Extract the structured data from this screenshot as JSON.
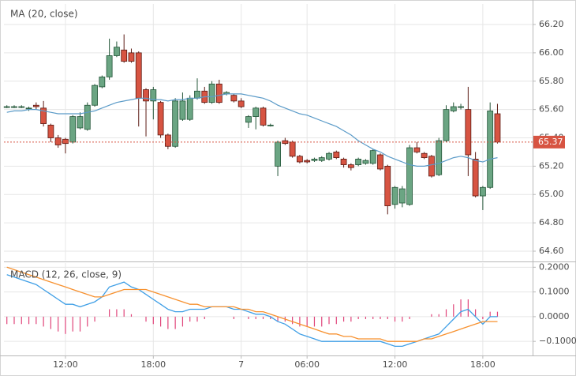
{
  "chart_data": [
    {
      "type": "candlestick",
      "series": [
        {
          "name": "MA (20, close)",
          "color": "#5b9bc8",
          "values": [
            65.58,
            65.59,
            65.59,
            65.6,
            65.6,
            65.59,
            65.58,
            65.57,
            65.57,
            65.57,
            65.57,
            65.58,
            65.59,
            65.61,
            65.63,
            65.65,
            65.66,
            65.67,
            65.68,
            65.68,
            65.67,
            65.67,
            65.66,
            65.67,
            65.67,
            65.68,
            65.68,
            65.69,
            65.69,
            65.7,
            65.71,
            65.71,
            65.71,
            65.7,
            65.69,
            65.68,
            65.66,
            65.63,
            65.61,
            65.59,
            65.57,
            65.56,
            65.54,
            65.52,
            65.5,
            65.48,
            65.45,
            65.42,
            65.38,
            65.35,
            65.32,
            65.3,
            65.27,
            65.25,
            65.23,
            65.21,
            65.2,
            65.2,
            65.21,
            65.22,
            65.24,
            65.26,
            65.27,
            65.26,
            65.24,
            65.23,
            65.25,
            65.26
          ]
        }
      ],
      "open": [
        65.62,
        65.62,
        65.62,
        65.61,
        65.63,
        65.61,
        65.49,
        65.4,
        65.39,
        65.37,
        65.47,
        65.46,
        65.63,
        65.76,
        65.83,
        65.98,
        66.02,
        66.0,
        66.0,
        65.74,
        65.66,
        65.65,
        65.42,
        65.34,
        65.53,
        65.53,
        65.68,
        65.73,
        65.65,
        65.78,
        65.71,
        65.7,
        65.66,
        65.51,
        65.55,
        65.61,
        65.49,
        65.2,
        65.38,
        65.37,
        65.27,
        65.24,
        65.24,
        65.24,
        65.25,
        65.3,
        65.25,
        65.21,
        65.21,
        65.22,
        65.22,
        65.28,
        65.2,
        64.93,
        64.94,
        64.93,
        65.33,
        65.29,
        65.27,
        65.14,
        65.38,
        65.59,
        65.62,
        65.6,
        65.25,
        64.99,
        65.05,
        65.57
      ],
      "high": [
        65.63,
        65.63,
        65.63,
        65.62,
        65.65,
        65.66,
        65.5,
        65.42,
        65.4,
        65.56,
        65.58,
        65.65,
        65.78,
        65.84,
        66.1,
        66.08,
        66.13,
        66.03,
        66.01,
        65.75,
        65.76,
        65.66,
        65.43,
        65.68,
        65.72,
        65.7,
        65.82,
        65.76,
        65.8,
        65.81,
        65.73,
        65.71,
        65.68,
        65.56,
        65.62,
        65.62,
        65.5,
        65.38,
        65.4,
        65.38,
        65.28,
        65.25,
        65.26,
        65.27,
        65.3,
        65.31,
        65.26,
        65.22,
        65.26,
        65.25,
        65.32,
        65.29,
        65.21,
        65.06,
        65.06,
        65.35,
        65.37,
        65.3,
        65.28,
        65.4,
        65.63,
        65.65,
        65.64,
        65.76,
        65.3,
        65.06,
        65.65,
        65.64
      ],
      "low": [
        65.61,
        65.61,
        65.61,
        65.59,
        65.6,
        65.48,
        65.37,
        65.33,
        65.29,
        65.36,
        65.46,
        65.45,
        65.62,
        65.75,
        65.81,
        65.97,
        65.93,
        65.93,
        65.48,
        65.41,
        65.53,
        65.4,
        65.32,
        65.33,
        65.52,
        65.52,
        65.67,
        65.64,
        65.64,
        65.64,
        65.7,
        65.65,
        65.61,
        65.47,
        65.46,
        65.48,
        65.48,
        65.13,
        65.35,
        65.26,
        65.22,
        65.22,
        65.23,
        65.23,
        65.24,
        65.25,
        65.19,
        65.17,
        65.2,
        65.21,
        65.21,
        65.17,
        64.86,
        64.9,
        64.91,
        64.92,
        65.29,
        65.25,
        65.12,
        65.13,
        65.37,
        65.58,
        65.6,
        65.13,
        64.98,
        64.89,
        65.04,
        65.36
      ],
      "close": [
        65.62,
        65.62,
        65.62,
        65.61,
        65.62,
        65.5,
        65.4,
        65.35,
        65.36,
        65.55,
        65.55,
        65.63,
        65.77,
        65.83,
        65.98,
        66.04,
        65.94,
        65.94,
        65.68,
        65.66,
        65.74,
        65.42,
        65.34,
        65.66,
        65.66,
        65.68,
        65.73,
        65.65,
        65.78,
        65.65,
        65.72,
        65.66,
        65.62,
        65.55,
        65.61,
        65.49,
        65.49,
        65.37,
        65.36,
        65.27,
        65.23,
        65.23,
        65.25,
        65.26,
        65.29,
        65.26,
        65.21,
        65.19,
        65.25,
        65.24,
        65.31,
        65.18,
        64.92,
        65.05,
        65.04,
        65.33,
        65.3,
        65.26,
        65.13,
        65.38,
        65.6,
        65.62,
        65.62,
        65.28,
        64.99,
        65.05,
        65.59,
        65.37
      ],
      "up_color": "#6ba583",
      "down_color": "#d75442",
      "last_price": 65.37,
      "last_price_color": "#d75442",
      "xlim": [
        -0.4,
        71.8
      ],
      "ylim": [
        64.533,
        66.345
      ],
      "yticks": [
        {
          "value": 64.6,
          "label": "64.60"
        },
        {
          "value": 64.8,
          "label": "64.80"
        },
        {
          "value": 65.0,
          "label": "65.00"
        },
        {
          "value": 65.2,
          "label": "65.20"
        },
        {
          "value": 65.4,
          "label": "65.40"
        },
        {
          "value": 65.6,
          "label": "65.60"
        },
        {
          "value": 65.8,
          "label": "65.80"
        },
        {
          "value": 66.0,
          "label": "66.00"
        },
        {
          "value": 66.2,
          "label": "66.20"
        }
      ],
      "grid": true
    },
    {
      "type": "macd",
      "title": "MACD (12, 26, close, 9)",
      "series": [
        {
          "color": "#3f9fe6",
          "values": [
            0.17,
            0.16,
            0.15,
            0.14,
            0.13,
            0.11,
            0.09,
            0.07,
            0.05,
            0.05,
            0.04,
            0.05,
            0.06,
            0.08,
            0.12,
            0.13,
            0.14,
            0.12,
            0.11,
            0.09,
            0.07,
            0.05,
            0.03,
            0.02,
            0.02,
            0.03,
            0.03,
            0.03,
            0.04,
            0.04,
            0.04,
            0.03,
            0.03,
            0.02,
            0.01,
            0.01,
            0.0,
            -0.02,
            -0.03,
            -0.05,
            -0.07,
            -0.08,
            -0.09,
            -0.1,
            -0.1,
            -0.1,
            -0.1,
            -0.1,
            -0.1,
            -0.1,
            -0.1,
            -0.1,
            -0.11,
            -0.12,
            -0.12,
            -0.11,
            -0.1,
            -0.09,
            -0.08,
            -0.07,
            -0.04,
            -0.01,
            0.02,
            0.03,
            0.0,
            -0.03,
            0.0,
            0.0
          ]
        },
        {
          "color": "#f7912f",
          "values": [
            0.2,
            0.19,
            0.18,
            0.17,
            0.16,
            0.15,
            0.14,
            0.13,
            0.12,
            0.11,
            0.1,
            0.09,
            0.08,
            0.08,
            0.09,
            0.1,
            0.11,
            0.11,
            0.11,
            0.11,
            0.1,
            0.09,
            0.08,
            0.07,
            0.06,
            0.05,
            0.05,
            0.04,
            0.04,
            0.04,
            0.04,
            0.04,
            0.03,
            0.03,
            0.02,
            0.02,
            0.01,
            0.0,
            -0.01,
            -0.02,
            -0.03,
            -0.04,
            -0.05,
            -0.06,
            -0.07,
            -0.07,
            -0.08,
            -0.08,
            -0.09,
            -0.09,
            -0.09,
            -0.09,
            -0.1,
            -0.1,
            -0.1,
            -0.1,
            -0.1,
            -0.09,
            -0.09,
            -0.08,
            -0.07,
            -0.06,
            -0.05,
            -0.04,
            -0.03,
            -0.02,
            -0.02,
            -0.02
          ]
        }
      ],
      "histogram": {
        "color": "#e0447a",
        "values": [
          -0.03,
          -0.03,
          -0.03,
          -0.03,
          -0.03,
          -0.04,
          -0.05,
          -0.06,
          -0.07,
          -0.06,
          -0.06,
          -0.04,
          -0.02,
          0.0,
          0.03,
          0.03,
          0.03,
          0.01,
          0.0,
          -0.02,
          -0.03,
          -0.04,
          -0.05,
          -0.05,
          -0.04,
          -0.02,
          -0.02,
          -0.01,
          0.0,
          0.0,
          0.0,
          -0.01,
          0.0,
          -0.01,
          -0.01,
          -0.01,
          -0.01,
          -0.02,
          -0.02,
          -0.03,
          -0.04,
          -0.04,
          -0.04,
          -0.04,
          -0.03,
          -0.03,
          -0.02,
          -0.02,
          -0.01,
          -0.01,
          -0.01,
          -0.01,
          -0.01,
          -0.02,
          -0.02,
          -0.01,
          0.0,
          0.0,
          0.01,
          0.01,
          0.03,
          0.05,
          0.07,
          0.07,
          0.03,
          -0.01,
          0.02,
          0.02
        ]
      },
      "xlim": [
        -0.4,
        71.8
      ],
      "ylim": [
        -0.157,
        0.217
      ],
      "yticks": [
        {
          "value": -0.1,
          "label": "−0.1000"
        },
        {
          "value": 0,
          "label": "0.0000"
        },
        {
          "value": 0.1,
          "label": "0.1000"
        },
        {
          "value": 0.2,
          "label": "0.2000"
        }
      ],
      "xticks": [
        {
          "value": 8,
          "label": "12:00"
        },
        {
          "value": 20,
          "label": "18:00"
        },
        {
          "value": 32,
          "label": "7"
        },
        {
          "value": 41,
          "label": "06:00"
        },
        {
          "value": 53,
          "label": "12:00"
        },
        {
          "value": 65,
          "label": "18:00"
        }
      ],
      "grid": true
    }
  ]
}
